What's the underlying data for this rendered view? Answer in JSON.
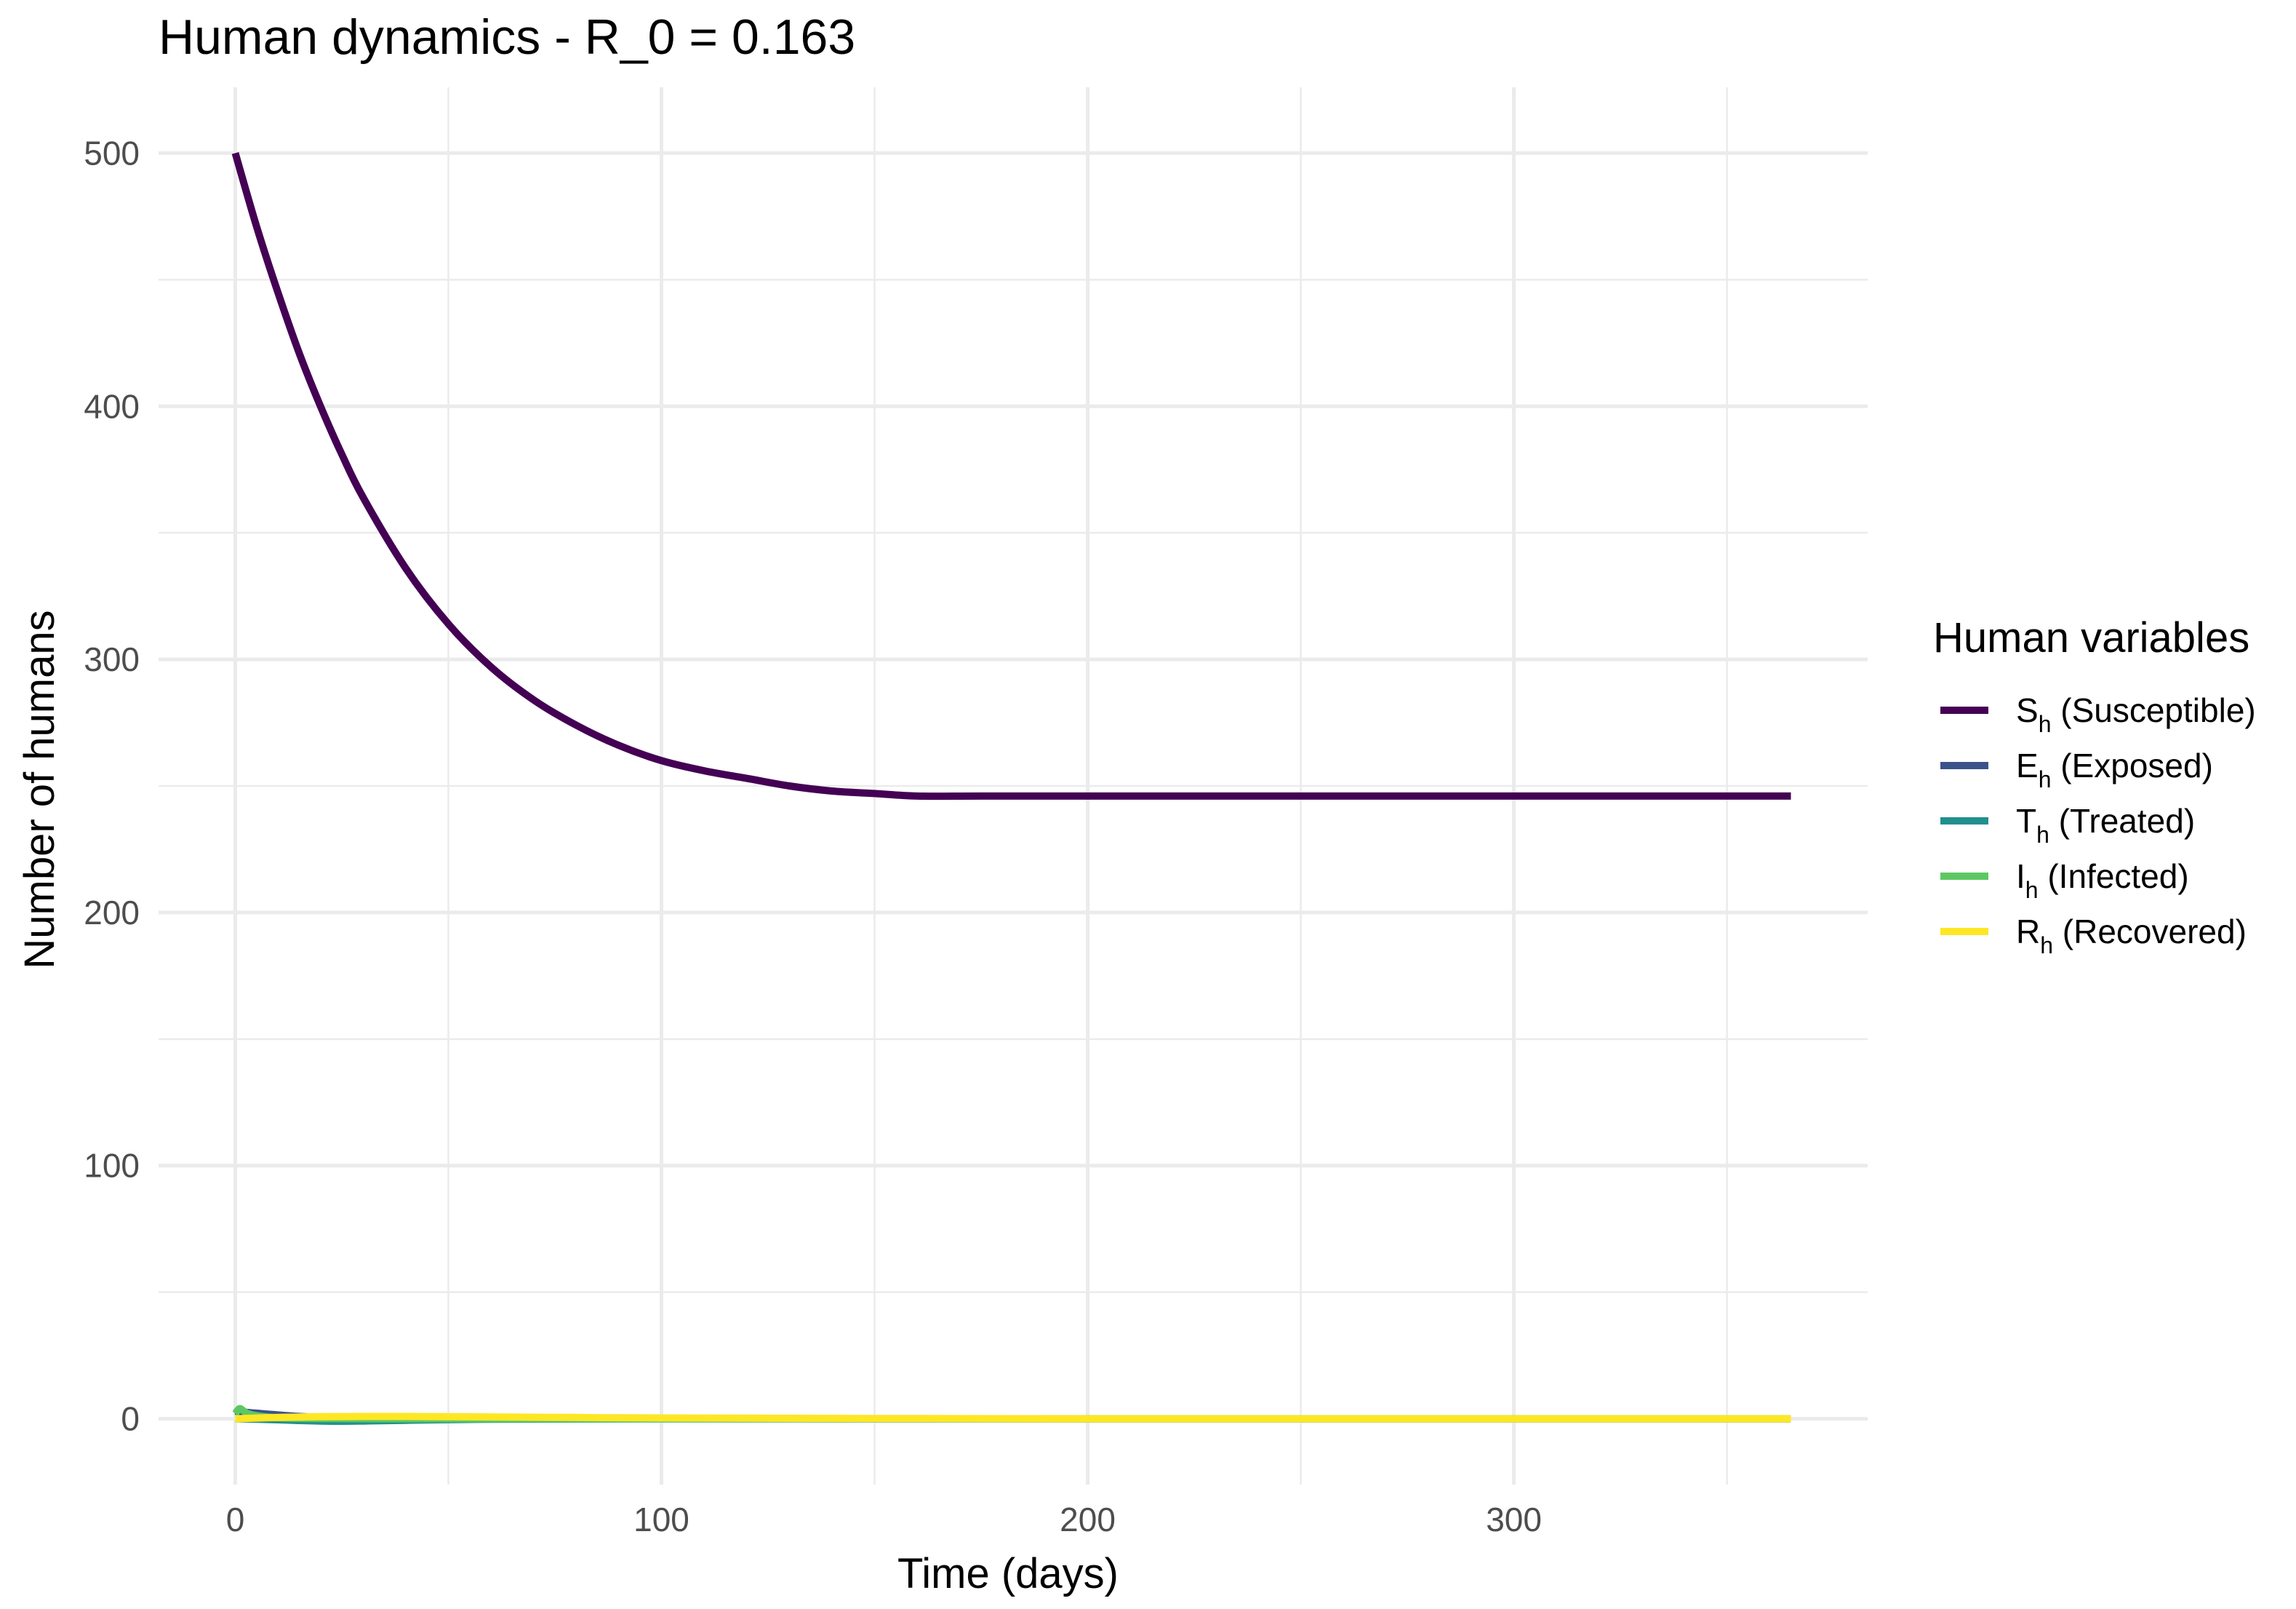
{
  "chart_data": {
    "type": "line",
    "title": "Human dynamics - R_0 = 0.163",
    "xlabel": "Time (days)",
    "ylabel": "Number of humans",
    "xlim": [
      -18,
      383
    ],
    "ylim": [
      -26,
      526
    ],
    "x_ticks": [
      0,
      100,
      200,
      300
    ],
    "x_tick_labels": [
      "0",
      "100",
      "200",
      "300"
    ],
    "y_ticks": [
      0,
      100,
      200,
      300,
      400,
      500
    ],
    "y_tick_labels": [
      "0",
      "100",
      "200",
      "300",
      "400",
      "500"
    ],
    "x_minor_ticks": [
      50,
      150,
      250,
      350
    ],
    "y_minor_ticks": [
      50,
      150,
      250,
      350,
      450
    ],
    "grid": true,
    "legend": {
      "title": "Human variables",
      "position": "right",
      "entries": [
        {
          "main": "S",
          "sub": "h",
          "rest": " (Susceptible)",
          "color": "#440154"
        },
        {
          "main": "E",
          "sub": "h",
          "rest": " (Exposed)",
          "color": "#3B528B"
        },
        {
          "main": "T",
          "sub": "h",
          "rest": " (Treated)",
          "color": "#21908C"
        },
        {
          "main": "I",
          "sub": "h",
          "rest": " (Infected)",
          "color": "#5DC863"
        },
        {
          "main": "R",
          "sub": "h",
          "rest": " (Recovered)",
          "color": "#FDE725"
        }
      ]
    },
    "series": [
      {
        "legend_index": 0,
        "color": "#440154",
        "x": [
          0,
          5,
          10,
          15,
          20,
          25,
          30,
          40,
          50,
          60,
          70,
          80,
          90,
          100,
          110,
          120,
          130,
          140,
          150,
          160,
          175,
          200,
          225,
          250,
          275,
          300,
          325,
          350,
          365
        ],
        "y": [
          500,
          471,
          445,
          421,
          400,
          381,
          364,
          336,
          314,
          297,
          284,
          274,
          266,
          260,
          256,
          253,
          250,
          248,
          247,
          246,
          255,
          254,
          252,
          251,
          251,
          250,
          250,
          250,
          250
        ]
      },
      {
        "legend_index": 1,
        "color": "#3B528B",
        "x": [
          0,
          2,
          5,
          10,
          15,
          20,
          30,
          40,
          60,
          100,
          150,
          200,
          250,
          300,
          365
        ],
        "y": [
          3,
          2.6,
          2.2,
          1.5,
          0.9,
          0.5,
          0.2,
          0.1,
          0,
          0,
          0,
          0,
          0,
          0,
          0
        ]
      },
      {
        "legend_index": 2,
        "color": "#21908C",
        "x": [
          0,
          5,
          10,
          15,
          20,
          25,
          30,
          40,
          60,
          100,
          150,
          200,
          250,
          300,
          365
        ],
        "y": [
          0,
          -0.2,
          -0.4,
          -0.7,
          -0.9,
          -1,
          -0.9,
          -0.6,
          -0.2,
          0,
          0,
          0,
          0,
          0,
          0
        ]
      },
      {
        "legend_index": 3,
        "color": "#5DC863",
        "x": [
          0,
          1,
          2,
          3,
          5,
          8,
          12,
          20,
          40,
          100,
          200,
          300,
          365
        ],
        "y": [
          2,
          4,
          3,
          2,
          1.2,
          0.6,
          0.3,
          0.1,
          0,
          0,
          0,
          0,
          0
        ]
      },
      {
        "legend_index": 4,
        "color": "#FDE725",
        "x": [
          0,
          10,
          20,
          30,
          40,
          50,
          60,
          80,
          100,
          150,
          200,
          250,
          300,
          365
        ],
        "y": [
          0,
          0.5,
          0.8,
          0.9,
          0.9,
          0.8,
          0.7,
          0.5,
          0.3,
          0.1,
          0,
          0,
          0,
          0
        ]
      }
    ]
  }
}
